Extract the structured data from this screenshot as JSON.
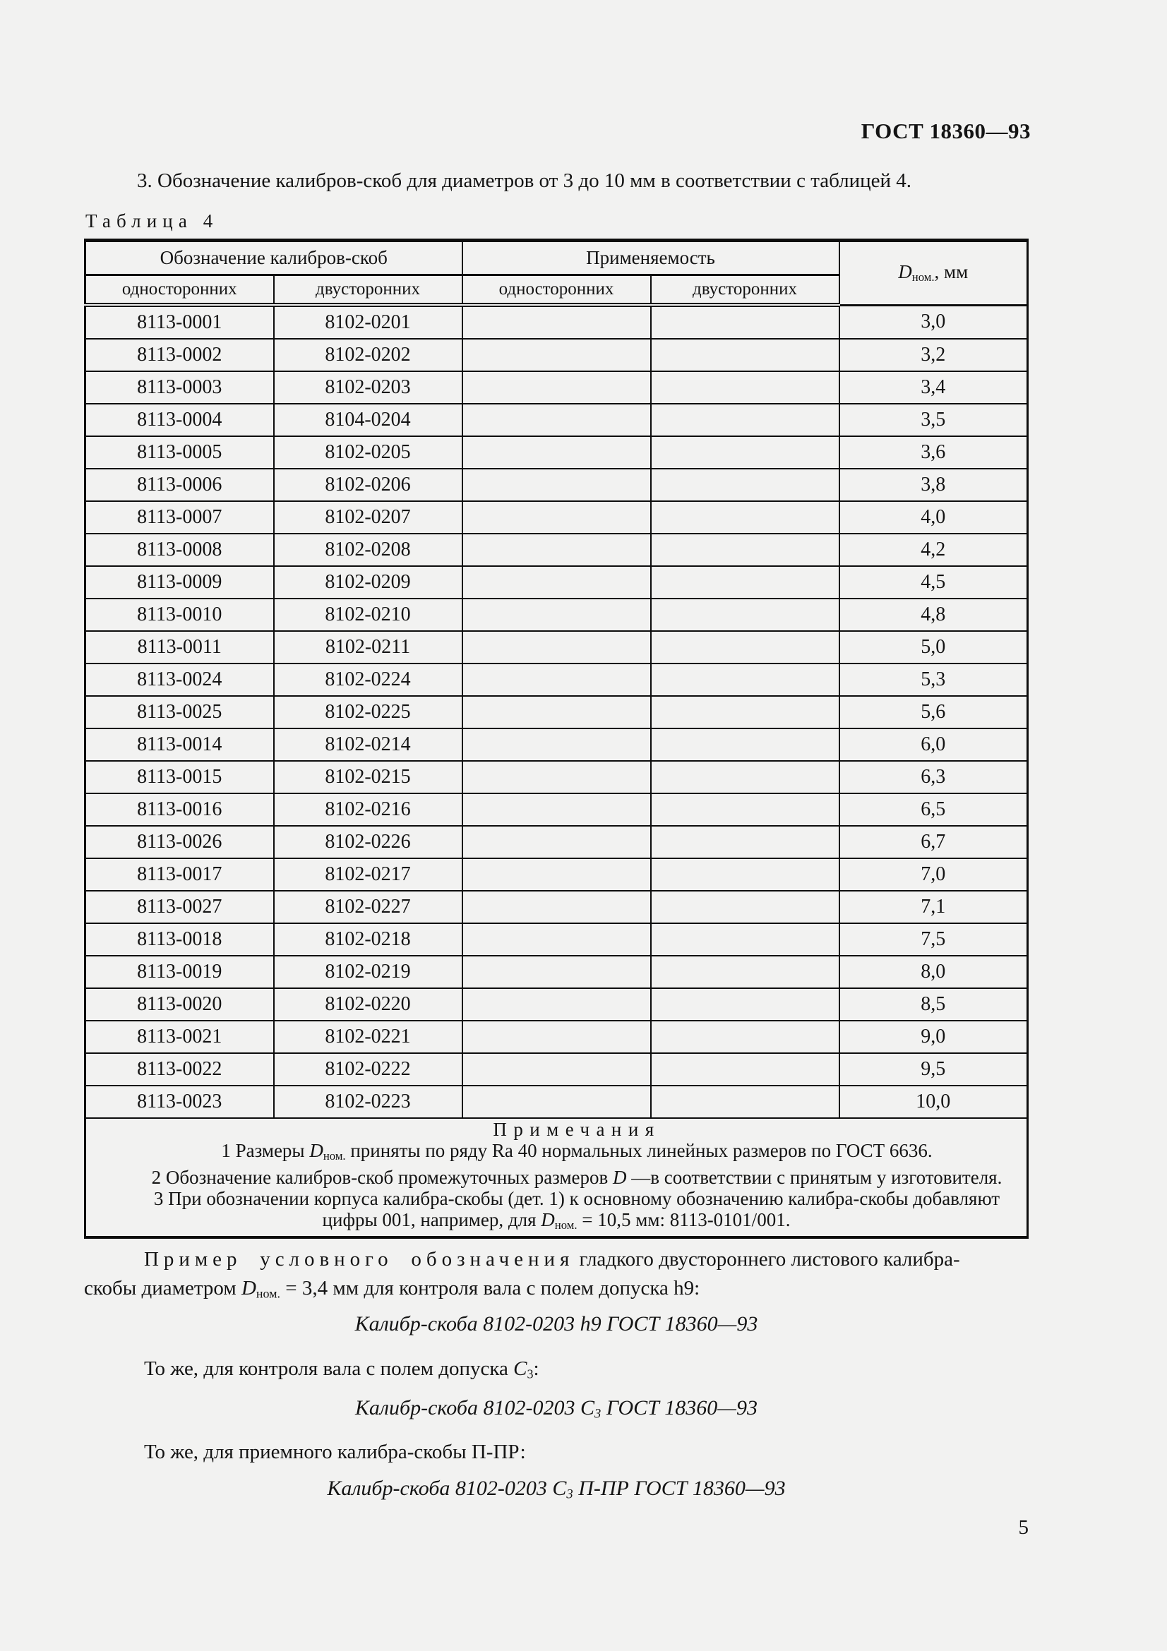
{
  "page": {
    "doc_number": "ГОСТ 18360—93",
    "page_number": "5"
  },
  "intro": {
    "clause": "3.  Обозначение калибров-скоб для диаметров от 3 до 10 мм в соответствии с таблицей 4.",
    "table_caption": "Таблица 4"
  },
  "table": {
    "group_headers": {
      "designation": "Обозначение калибров-скоб",
      "applicability": "Применяемость"
    },
    "sub_headers": [
      "односторонних",
      "двусторонних",
      "односторонних",
      "двусторонних"
    ],
    "d_header": {
      "symbol": "D",
      "subscript": "ном.",
      "suffix": ", мм"
    },
    "rows": [
      [
        "8113-0001",
        "8102-0201",
        "",
        "",
        "3,0"
      ],
      [
        "8113-0002",
        "8102-0202",
        "",
        "",
        "3,2"
      ],
      [
        "8113-0003",
        "8102-0203",
        "",
        "",
        "3,4"
      ],
      [
        "8113-0004",
        "8104-0204",
        "",
        "",
        "3,5"
      ],
      [
        "8113-0005",
        "8102-0205",
        "",
        "",
        "3,6"
      ],
      [
        "8113-0006",
        "8102-0206",
        "",
        "",
        "3,8"
      ],
      [
        "8113-0007",
        "8102-0207",
        "",
        "",
        "4,0"
      ],
      [
        "8113-0008",
        "8102-0208",
        "",
        "",
        "4,2"
      ],
      [
        "8113-0009",
        "8102-0209",
        "",
        "",
        "4,5"
      ],
      [
        "8113-0010",
        "8102-0210",
        "",
        "",
        "4,8"
      ],
      [
        "8113-0011",
        "8102-0211",
        "",
        "",
        "5,0"
      ],
      [
        "8113-0024",
        "8102-0224",
        "",
        "",
        "5,3"
      ],
      [
        "8113-0025",
        "8102-0225",
        "",
        "",
        "5,6"
      ],
      [
        "8113-0014",
        "8102-0214",
        "",
        "",
        "6,0"
      ],
      [
        "8113-0015",
        "8102-0215",
        "",
        "",
        "6,3"
      ],
      [
        "8113-0016",
        "8102-0216",
        "",
        "",
        "6,5"
      ],
      [
        "8113-0026",
        "8102-0226",
        "",
        "",
        "6,7"
      ],
      [
        "8113-0017",
        "8102-0217",
        "",
        "",
        "7,0"
      ],
      [
        "8113-0027",
        "8102-0227",
        "",
        "",
        "7,1"
      ],
      [
        "8113-0018",
        "8102-0218",
        "",
        "",
        "7,5"
      ],
      [
        "8113-0019",
        "8102-0219",
        "",
        "",
        "8,0"
      ],
      [
        "8113-0020",
        "8102-0220",
        "",
        "",
        "8,5"
      ],
      [
        "8113-0021",
        "8102-0221",
        "",
        "",
        "9,0"
      ],
      [
        "8113-0022",
        "8102-0222",
        "",
        "",
        "9,5"
      ],
      [
        "8113-0023",
        "8102-0223",
        "",
        "",
        "10,0"
      ]
    ],
    "notes": {
      "title": "Примечания",
      "note1": {
        "pre": "1  Размеры ",
        "sym": "D",
        "sub": "ном.",
        "post": " приняты по ряду Ra 40 нормальных линейных размеров по ГОСТ 6636."
      },
      "note2": {
        "pre": "2  Обозначение калибров-скоб промежуточных размеров ",
        "sym": "D",
        "post": " —в соответствии с принятым у изготовителя."
      },
      "note3_line1": "3  При обозначении корпуса калибра-скобы (дет. 1) к основному обозначению калибра-скобы добавляют",
      "note3_line2": {
        "pre": "цифры 001, например, для ",
        "sym": "D",
        "sub": "ном.",
        "post": " = 10,5 мм: 8113-0101/001."
      }
    }
  },
  "examples": {
    "intro_spaced": "Пример условного обозначения",
    "intro_rest": " гладкого двустороннего листового калибра-",
    "intro_line2": {
      "pre": "скобы диаметром ",
      "sym": "D",
      "sub": "ном.",
      "post": " = 3,4 мм для контроля вала с полем допуска h9:"
    },
    "designation1": "Калибр-скоба 8102-0203 h9 ГОСТ 18360—93",
    "same2": {
      "pre": "То же, для контроля вала с полем допуска ",
      "sym": "C",
      "sub": "3",
      "post": ":"
    },
    "designation2": {
      "pre": "Калибр-скоба 8102-0203 ",
      "sym": "C",
      "sub": "3",
      "post": " ГОСТ 18360—93"
    },
    "same3": "То же, для приемного калибра-скобы П-ПР:",
    "designation3": {
      "pre": "Калибр-скоба 8102-0203 ",
      "sym": "C",
      "sub": "3",
      "post": " П-ПР ГОСТ 18360—93"
    }
  }
}
